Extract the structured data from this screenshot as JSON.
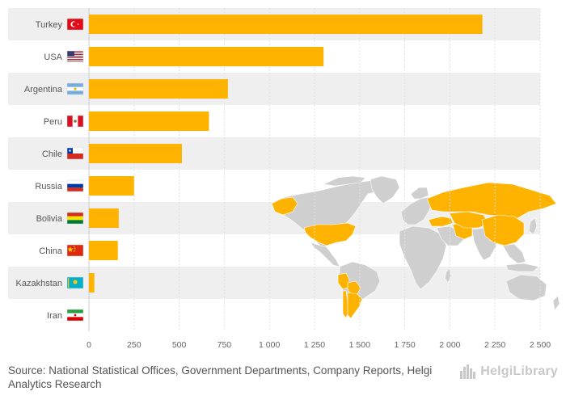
{
  "chart_data": {
    "type": "bar",
    "orientation": "horizontal",
    "title": "",
    "xlabel": "",
    "ylabel": "",
    "categories": [
      "Turkey",
      "USA",
      "Argentina",
      "Peru",
      "Chile",
      "Russia",
      "Bolivia",
      "China",
      "Kazakhstan",
      "Iran"
    ],
    "values": [
      2180,
      1300,
      770,
      665,
      515,
      250,
      165,
      160,
      30,
      0
    ],
    "xlim": [
      0,
      2500
    ],
    "ticks": [
      0,
      250,
      500,
      750,
      1000,
      1250,
      1500,
      1750,
      2000,
      2250,
      2500
    ],
    "tick_labels": [
      "0",
      "250",
      "500",
      "750",
      "1 000",
      "1 250",
      "1 500",
      "1 750",
      "2 000",
      "2 250",
      "2 500"
    ],
    "bar_color": "#FDB300",
    "band_color": "#EFEFEF",
    "grid": true
  },
  "map": {
    "land_color": "#CFCFCF",
    "highlight_color": "#FDB300",
    "highlighted_countries": [
      "Turkey",
      "USA",
      "Argentina",
      "Peru",
      "Chile",
      "Russia",
      "Bolivia",
      "China",
      "Kazakhstan",
      "Iran"
    ]
  },
  "flags": [
    {
      "country": "Turkey",
      "icon": "flag-turkey"
    },
    {
      "country": "USA",
      "icon": "flag-usa"
    },
    {
      "country": "Argentina",
      "icon": "flag-argentina"
    },
    {
      "country": "Peru",
      "icon": "flag-peru"
    },
    {
      "country": "Chile",
      "icon": "flag-chile"
    },
    {
      "country": "Russia",
      "icon": "flag-russia"
    },
    {
      "country": "Bolivia",
      "icon": "flag-bolivia"
    },
    {
      "country": "China",
      "icon": "flag-china"
    },
    {
      "country": "Kazakhstan",
      "icon": "flag-kazakhstan"
    },
    {
      "country": "Iran",
      "icon": "flag-iran"
    }
  ],
  "footer": {
    "source_label": "Source:",
    "source_text": "National Statistical Offices, Government Departments, Company Reports, Helgi Analytics Research",
    "brand": "HelgiLibrary",
    "brand_icon": "library-buildings-icon"
  }
}
